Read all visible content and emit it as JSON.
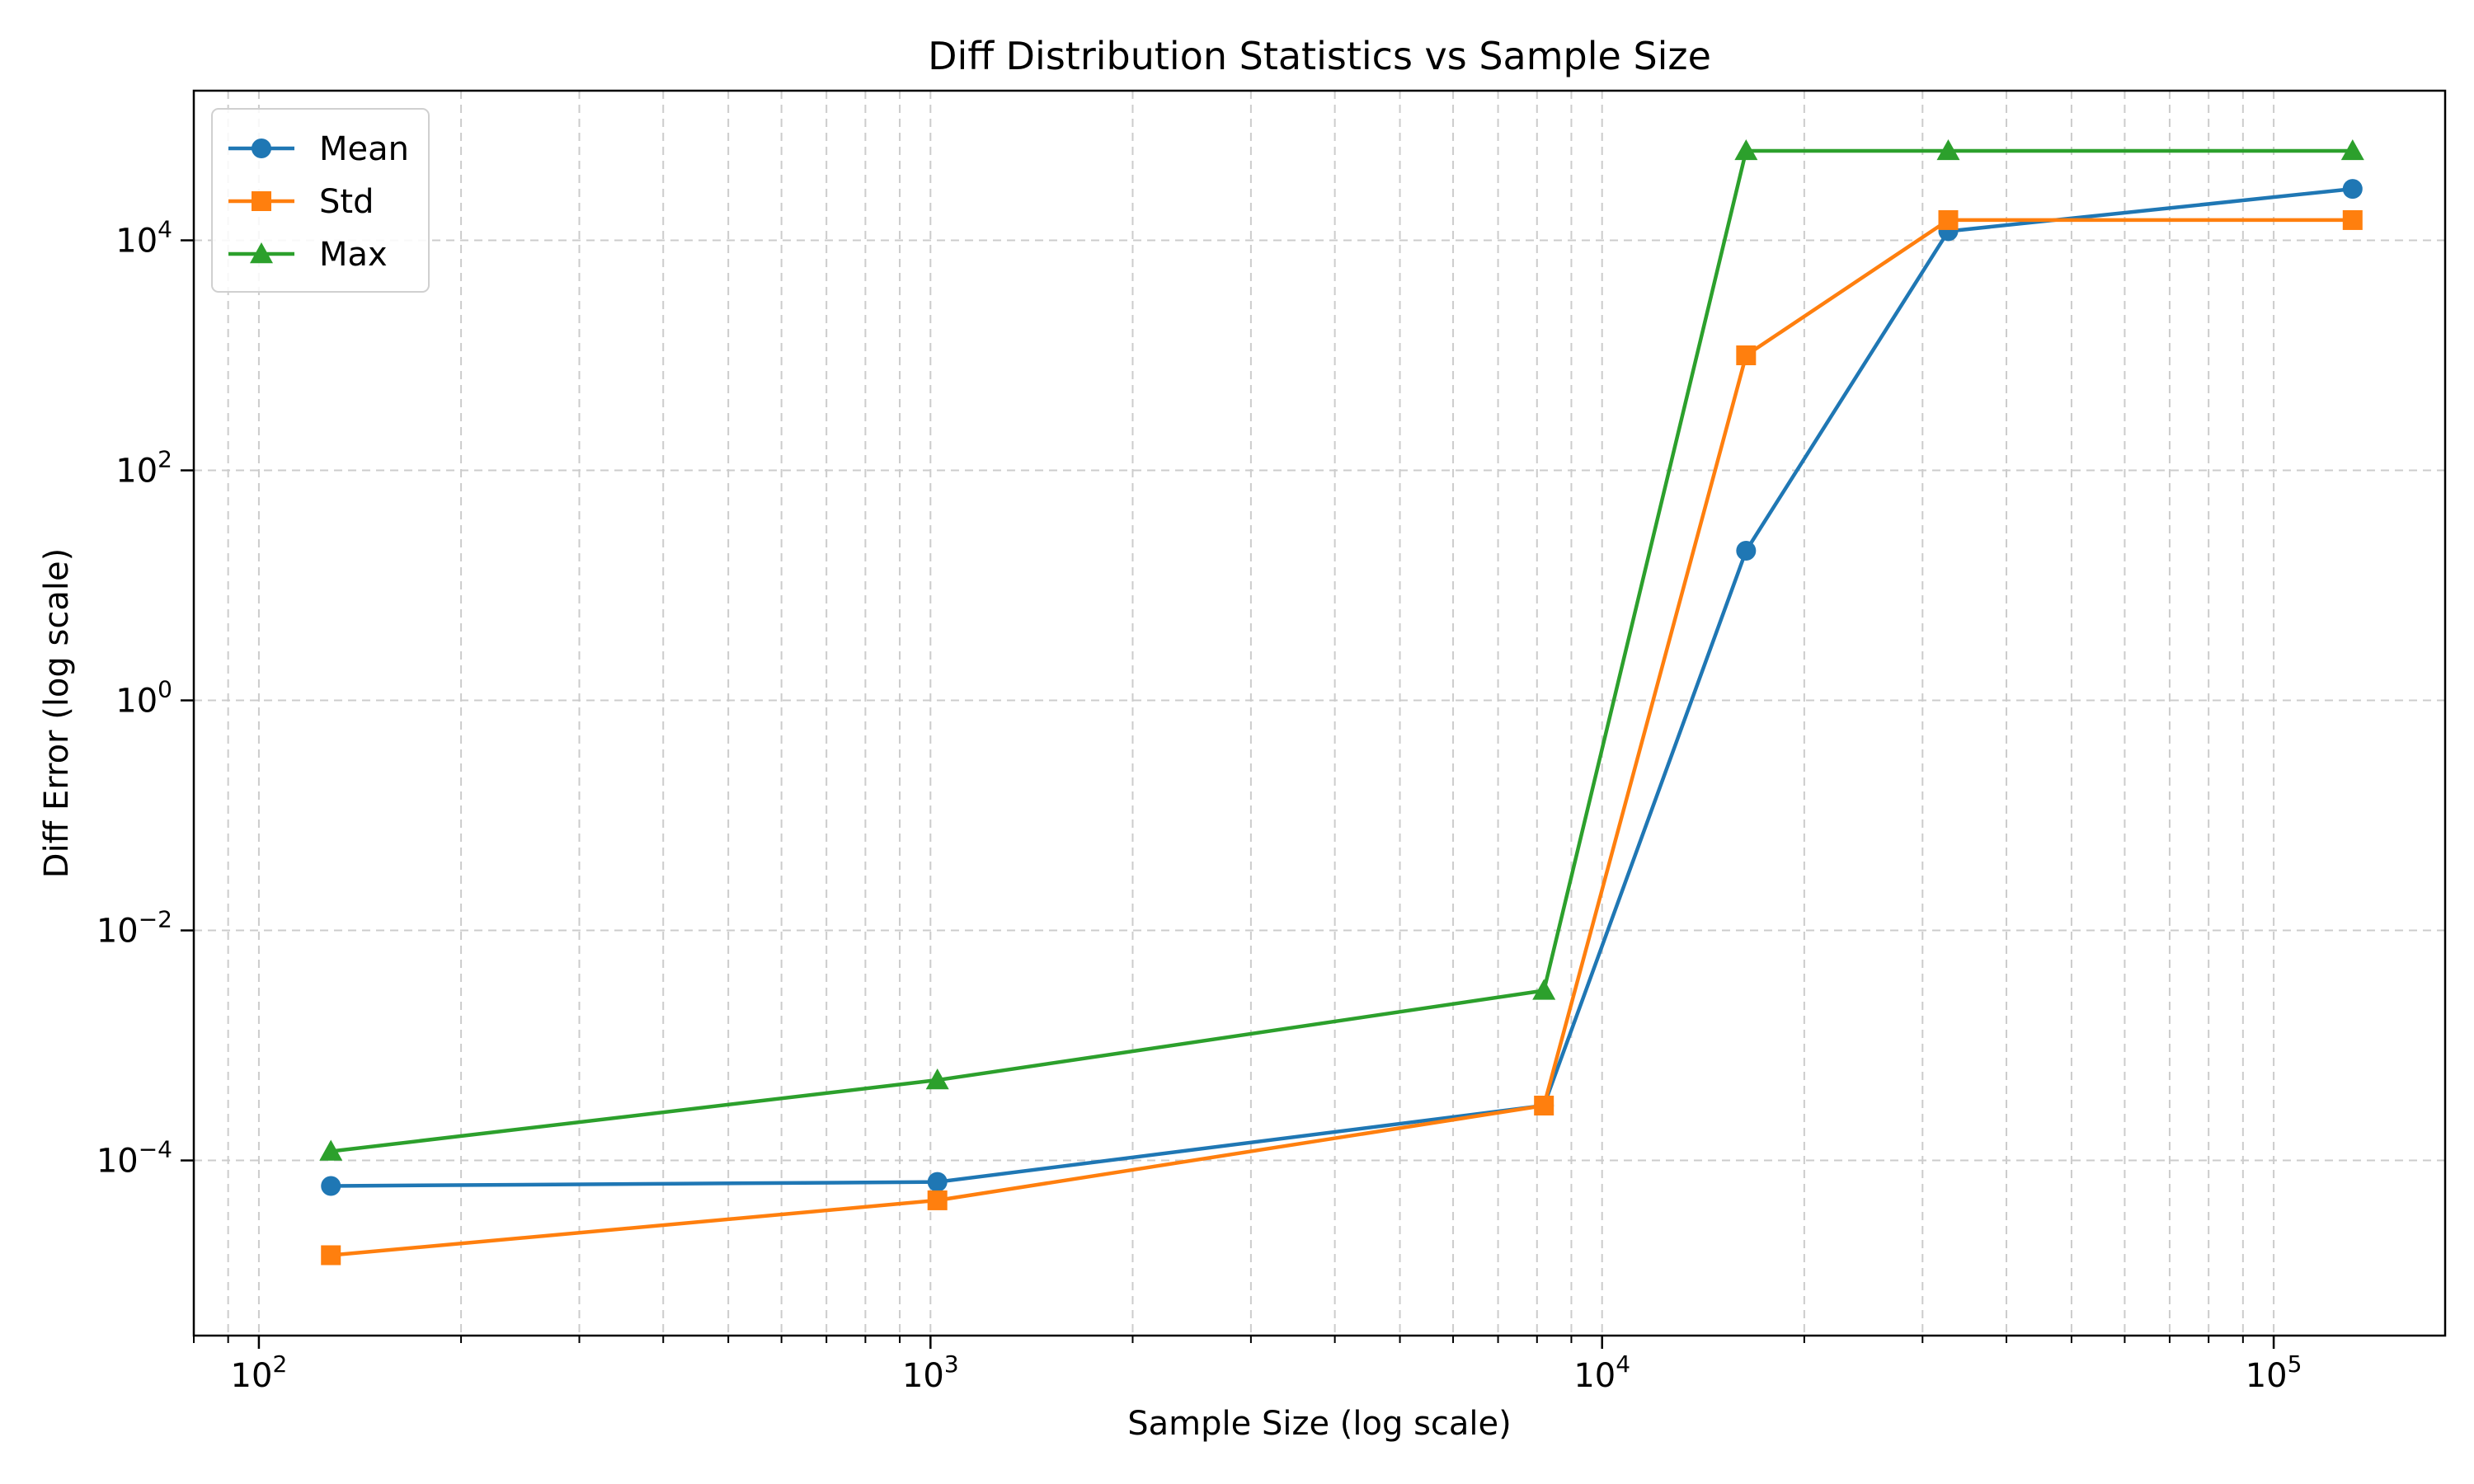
{
  "chart_data": {
    "type": "line",
    "title": "Diff Distribution Statistics vs Sample Size",
    "xlabel": "Sample Size (log scale)",
    "ylabel": "Diff Error (log scale)",
    "xscale": "log",
    "yscale": "log",
    "xlim": [
      80,
      180000
    ],
    "ylim": [
      3e-06,
      200000
    ],
    "grid": true,
    "legend_position": "top-left",
    "x": [
      128,
      1024,
      8192,
      16384,
      32768,
      131072
    ],
    "series": [
      {
        "name": "Mean",
        "marker": "circle",
        "color": "#1f77b4",
        "values": [
          6e-05,
          6.5e-05,
          0.0003,
          20,
          12000,
          28000
        ]
      },
      {
        "name": "Std",
        "marker": "square",
        "color": "#ff7f0e",
        "values": [
          1.5e-05,
          4.5e-05,
          0.0003,
          1000,
          15000,
          15000
        ]
      },
      {
        "name": "Max",
        "marker": "triangle",
        "color": "#2ca02c",
        "values": [
          0.00012,
          0.0005,
          0.003,
          60000,
          60000,
          60000
        ]
      }
    ],
    "xticks": [
      {
        "value": 100,
        "base": "10",
        "exp": "2"
      },
      {
        "value": 1000,
        "base": "10",
        "exp": "3"
      },
      {
        "value": 10000,
        "base": "10",
        "exp": "4"
      },
      {
        "value": 100000,
        "base": "10",
        "exp": "5"
      }
    ],
    "yticks": [
      {
        "value": 0.0001,
        "base": "10",
        "exp": "−4"
      },
      {
        "value": 0.01,
        "base": "10",
        "exp": "−2"
      },
      {
        "value": 1,
        "base": "10",
        "exp": "0"
      },
      {
        "value": 100,
        "base": "10",
        "exp": "2"
      },
      {
        "value": 10000,
        "base": "10",
        "exp": "4"
      }
    ]
  }
}
